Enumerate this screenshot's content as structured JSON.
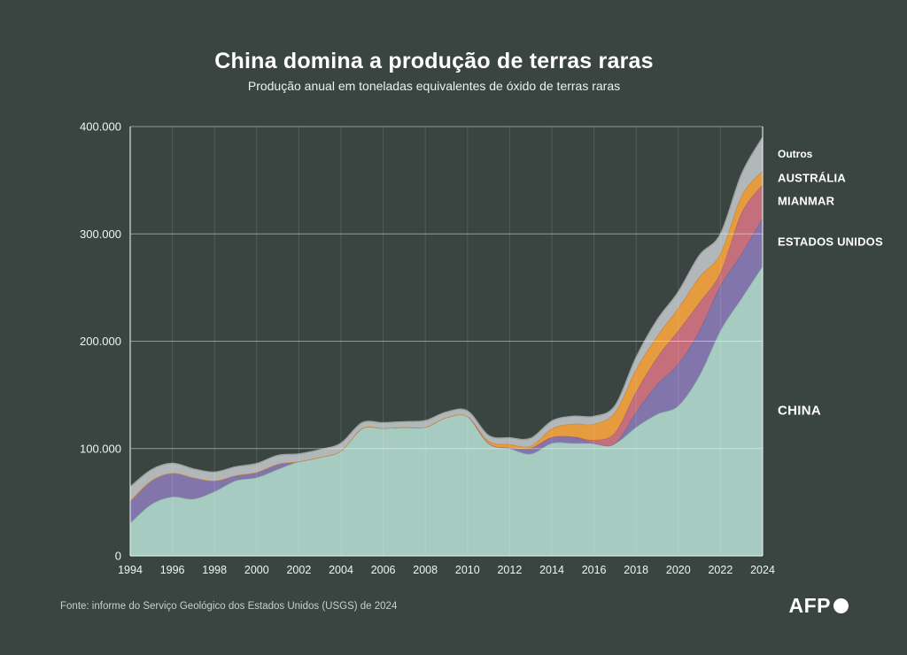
{
  "page": {
    "title": "China domina a produção de terras raras",
    "subtitle": "Produção anual em toneladas equivalentes de óxido de terras raras",
    "source": "Fonte: informe do Serviço Geológico dos Estados Unidos (USGS) de 2024",
    "logo": "AFP"
  },
  "labels": {
    "outros": "Outros",
    "australia": "AUSTRÁLIA",
    "mianmar": "MIANMAR",
    "estados_unidos": "ESTADOS UNIDOS",
    "china": "CHINA"
  },
  "colors": {
    "background": "#3a4541",
    "grid": "#ffffff",
    "text": "#ffffff"
  },
  "chart_data": {
    "type": "area",
    "stacked": true,
    "title": "China domina a produção de terras raras",
    "subtitle": "Produção anual em toneladas equivalentes de óxido de terras raras",
    "unit": "toneladas equivalentes de óxido de terras raras",
    "x": [
      1994,
      1995,
      1996,
      1997,
      1998,
      1999,
      2000,
      2001,
      2002,
      2003,
      2004,
      2005,
      2006,
      2007,
      2008,
      2009,
      2010,
      2011,
      2012,
      2013,
      2014,
      2015,
      2016,
      2017,
      2018,
      2019,
      2020,
      2021,
      2022,
      2023,
      2024
    ],
    "x_tick_labels": [
      "1994",
      "1996",
      "1998",
      "2000",
      "2002",
      "2004",
      "2006",
      "2008",
      "2010",
      "2012",
      "2014",
      "2016",
      "2018",
      "2020",
      "2022",
      "2024"
    ],
    "y_ticks": [
      0,
      100000,
      200000,
      300000,
      400000
    ],
    "y_tick_labels": [
      "0",
      "100.000",
      "200.000",
      "300.000",
      "400.000"
    ],
    "ylim": [
      0,
      400000
    ],
    "legend_position": "right",
    "grid": true,
    "series": [
      {
        "name": "CHINA",
        "label_key": "china",
        "color": "#a6ccc2",
        "values": [
          30600,
          48000,
          55000,
          53000,
          60000,
          70000,
          73000,
          80600,
          88000,
          92000,
          98000,
          119000,
          119000,
          120000,
          120000,
          129000,
          130000,
          105000,
          100000,
          95000,
          105000,
          105000,
          105000,
          105000,
          120000,
          132000,
          140000,
          168000,
          210000,
          240000,
          270000
        ]
      },
      {
        "name": "ESTADOS UNIDOS",
        "label_key": "estados_unidos",
        "color": "#8175ab",
        "values": [
          20700,
          22200,
          22200,
          20000,
          10000,
          5000,
          5000,
          5000,
          0,
          0,
          0,
          0,
          0,
          0,
          0,
          0,
          0,
          0,
          800,
          5500,
          5400,
          5900,
          0,
          0,
          14000,
          28000,
          39000,
          42000,
          42000,
          41600,
          45000
        ]
      },
      {
        "name": "MIANMAR",
        "label_key": "mianmar",
        "color": "#c66f7c",
        "values": [
          0,
          0,
          0,
          0,
          0,
          0,
          0,
          0,
          0,
          0,
          0,
          0,
          0,
          0,
          0,
          0,
          0,
          0,
          0,
          0,
          200,
          200,
          3000,
          10000,
          19000,
          25000,
          31000,
          26000,
          12000,
          38000,
          31000
        ]
      },
      {
        "name": "AUSTRÁLIA",
        "label_key": "australia",
        "color": "#e59b3e",
        "values": [
          0,
          0,
          0,
          0,
          0,
          0,
          0,
          0,
          0,
          0,
          0,
          0,
          0,
          0,
          0,
          0,
          0,
          2200,
          3200,
          2000,
          8000,
          12000,
          15000,
          19000,
          21000,
          20000,
          21000,
          24000,
          18000,
          16000,
          13000
        ]
      },
      {
        "name": "Outros",
        "label_key": "outros",
        "color": "#b2b8b9",
        "values": [
          13000,
          10000,
          9000,
          8000,
          8000,
          8000,
          8000,
          8000,
          7000,
          7000,
          7000,
          5000,
          5000,
          5000,
          6000,
          5000,
          5000,
          5000,
          6000,
          7000,
          7000,
          7000,
          7000,
          6000,
          11000,
          15000,
          15000,
          20000,
          18000,
          20000,
          31000
        ]
      }
    ]
  }
}
